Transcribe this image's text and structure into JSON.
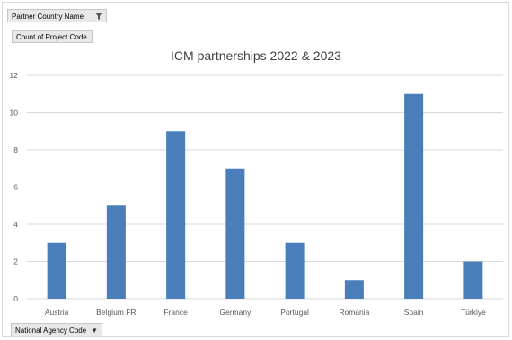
{
  "filter_button": {
    "label": "Partner Country Name",
    "icon": "funnel-icon"
  },
  "value_button": {
    "label": "Count of Project Code"
  },
  "axis_button": {
    "label": "National Agency Code",
    "icon": "dropdown-arrow-icon"
  },
  "colors": {
    "bar": "#4a7ebb",
    "grid": "#d9d9d9",
    "text": "#595959"
  },
  "chart_data": {
    "type": "bar",
    "title": "ICM partnerships 2022 & 2023",
    "xlabel": "",
    "ylabel": "",
    "categories": [
      "Austria",
      "Belgium FR",
      "France",
      "Germany",
      "Portugal",
      "Romania",
      "Spain",
      "Türkiye"
    ],
    "values": [
      3,
      5,
      9,
      7,
      3,
      1,
      11,
      2
    ],
    "ylim": [
      0,
      12
    ],
    "yticks": [
      0,
      2,
      4,
      6,
      8,
      10,
      12
    ],
    "grid": true,
    "legend": "none"
  }
}
